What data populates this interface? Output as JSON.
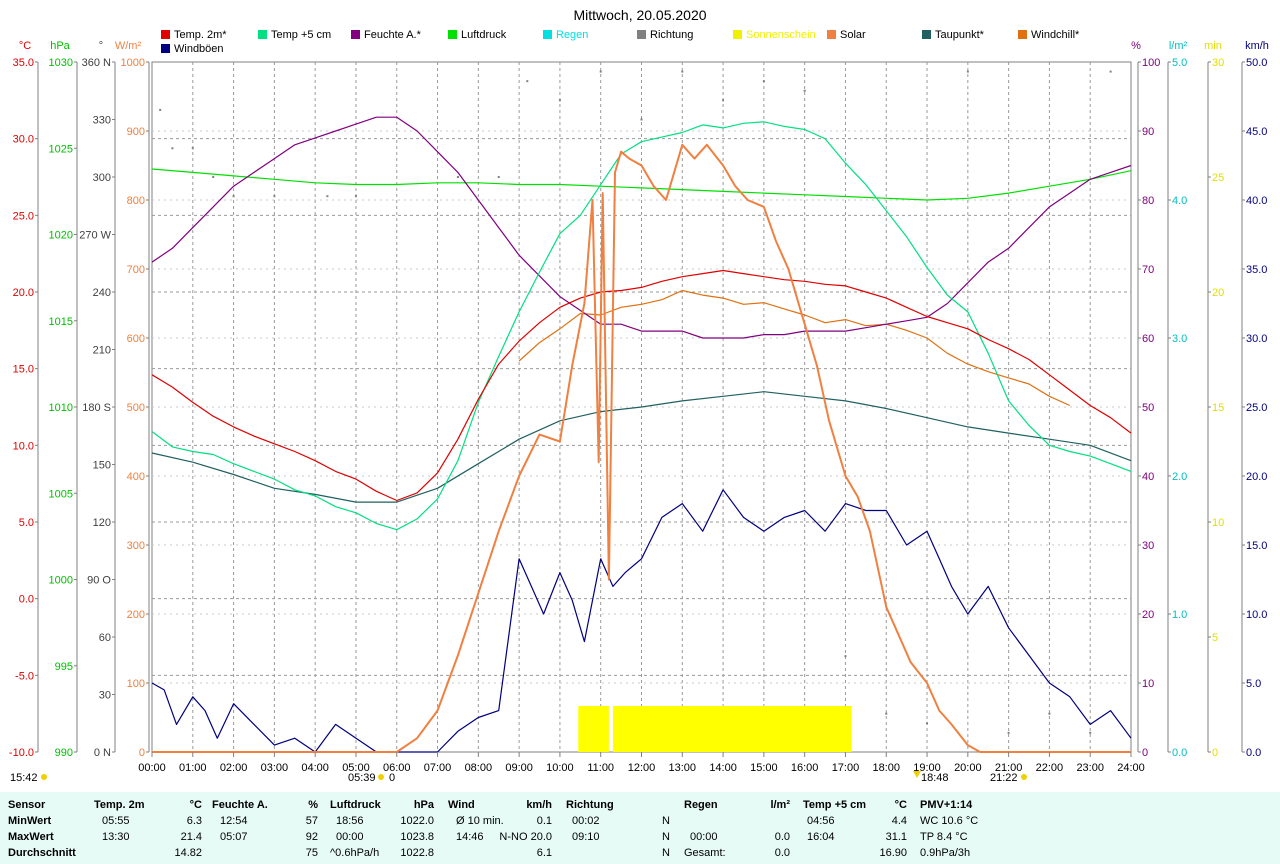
{
  "title": "Mittwoch, 20.05.2020",
  "legend": [
    {
      "label": "Temp. 2m*",
      "color": "#e00000"
    },
    {
      "label": "Temp +5 cm",
      "color": "#00e080"
    },
    {
      "label": "Feuchte A.*",
      "color": "#800080"
    },
    {
      "label": "Luftdruck",
      "color": "#00e000"
    },
    {
      "label": "Regen",
      "color": "#00e0e0"
    },
    {
      "label": "Richtung",
      "color": "#808080"
    },
    {
      "label": "Sonnenschein",
      "color": "#f0f000"
    },
    {
      "label": "Solar",
      "color": "#f08040"
    },
    {
      "label": "Taupunkt*",
      "color": "#206060"
    },
    {
      "label": "Windchill*",
      "color": "#e07010"
    },
    {
      "label": "Windböen",
      "color": "#000080"
    }
  ],
  "axes": {
    "temp": {
      "unit": "°C",
      "color": "#e00000",
      "ticks": [
        "35.0",
        "30.0",
        "25.0",
        "20.0",
        "15.0",
        "10.0",
        "5.0",
        "0.0",
        "-5.0",
        "-10.0"
      ]
    },
    "pressure": {
      "unit": "hPa",
      "color": "#00c000",
      "ticks": [
        "1030",
        "1025",
        "1020",
        "1015",
        "1010",
        "1005",
        "1000",
        "995",
        "990"
      ]
    },
    "direction": {
      "unit": "°",
      "color": "#404040",
      "ticks": [
        "360 N",
        "330",
        "300",
        "270 W",
        "240",
        "210",
        "180 S",
        "150",
        "120",
        "90  O",
        "60",
        "30",
        "0   N"
      ]
    },
    "solar": {
      "unit": "W/m²",
      "color": "#f08040",
      "ticks": [
        "1000",
        "900",
        "800",
        "700",
        "600",
        "500",
        "400",
        "300",
        "200",
        "100",
        "0"
      ]
    },
    "humidity": {
      "unit": "%",
      "color": "#800080",
      "ticks": [
        "100",
        "90",
        "80",
        "70",
        "60",
        "50",
        "40",
        "30",
        "20",
        "10",
        "0"
      ]
    },
    "rain": {
      "unit": "l/m²",
      "color": "#00c0c0",
      "ticks": [
        "5.0",
        "4.0",
        "3.0",
        "2.0",
        "1.0",
        "0.0"
      ]
    },
    "sunshine": {
      "unit": "min",
      "color": "#e0e000",
      "ticks": [
        "30",
        "25",
        "20",
        "15",
        "10",
        "5",
        "0"
      ]
    },
    "wind": {
      "unit": "km/h",
      "color": "#000080",
      "ticks": [
        "50.0",
        "45.0",
        "40.0",
        "35.0",
        "30.0",
        "25.0",
        "20.0",
        "15.0",
        "10.0",
        "5.0",
        "0.0"
      ]
    }
  },
  "x_ticks": [
    "00:00",
    "01:00",
    "02:00",
    "03:00",
    "04:00",
    "05:00",
    "06:00",
    "07:00",
    "08:00",
    "09:00",
    "10:00",
    "11:00",
    "12:00",
    "13:00",
    "14:00",
    "15:00",
    "16:00",
    "17:00",
    "18:00",
    "19:00",
    "20:00",
    "21:00",
    "22:00",
    "23:00",
    "24:00"
  ],
  "bottom_markers": {
    "left_time": "15:42",
    "sunrise": "05:39",
    "sunrise_val": "0",
    "sunset": "18:48",
    "moon": "21:22"
  },
  "chart_data": {
    "type": "line",
    "x_unit": "hours",
    "xlim": [
      0,
      24
    ],
    "series": [
      {
        "name": "Temp. 2m*",
        "axis": "temp",
        "x": [
          0,
          0.5,
          1,
          1.5,
          2,
          2.5,
          3,
          3.5,
          4,
          4.5,
          5,
          5.5,
          6,
          6.5,
          7,
          7.5,
          8,
          8.5,
          9,
          9.5,
          10,
          10.5,
          11,
          11.5,
          12,
          12.5,
          13,
          13.5,
          14,
          14.5,
          15,
          15.5,
          16,
          16.5,
          17,
          17.5,
          18,
          18.5,
          19,
          19.5,
          20,
          20.5,
          21,
          21.5,
          22,
          22.5,
          23,
          23.5,
          24
        ],
        "values": [
          14.6,
          13.8,
          12.8,
          11.9,
          11.2,
          10.6,
          10.1,
          9.6,
          9.0,
          8.3,
          7.8,
          7.0,
          6.4,
          6.9,
          8.2,
          10.4,
          13.0,
          15.3,
          16.8,
          18.0,
          19.0,
          19.6,
          20.0,
          20.1,
          20.3,
          20.7,
          21.0,
          21.2,
          21.4,
          21.2,
          21.0,
          20.8,
          20.7,
          20.5,
          20.4,
          20.0,
          19.6,
          19.0,
          18.4,
          18.0,
          17.6,
          16.9,
          16.3,
          15.6,
          14.6,
          13.6,
          12.6,
          11.8,
          10.8
        ]
      },
      {
        "name": "Temp +5 cm",
        "axis": "temp",
        "x": [
          0,
          0.5,
          1,
          1.5,
          2,
          2.5,
          3,
          3.5,
          4,
          4.5,
          5,
          5.5,
          6,
          6.5,
          7,
          7.5,
          8,
          8.5,
          9,
          9.5,
          10,
          10.5,
          11,
          11.5,
          12,
          12.5,
          13,
          13.5,
          14,
          14.5,
          15,
          15.5,
          16,
          16.5,
          17,
          17.5,
          18,
          18.5,
          19,
          19.5,
          20,
          20.5,
          21,
          21.5,
          22,
          22.5,
          23,
          23.5,
          24
        ],
        "values": [
          10.9,
          9.9,
          9.6,
          9.4,
          8.8,
          8.3,
          7.8,
          7.1,
          6.7,
          6.0,
          5.6,
          4.9,
          4.5,
          5.2,
          6.5,
          9.0,
          12.8,
          15.8,
          18.7,
          21.3,
          23.8,
          25.0,
          27.0,
          29.0,
          29.8,
          30.1,
          30.4,
          30.9,
          30.7,
          31.0,
          31.1,
          30.8,
          30.6,
          30.0,
          28.4,
          27.0,
          25.3,
          23.6,
          21.6,
          19.8,
          18.7,
          16.0,
          12.9,
          11.3,
          10.0,
          9.6,
          9.3,
          8.8,
          8.3
        ]
      },
      {
        "name": "Feuchte A.*",
        "axis": "humidity",
        "x": [
          0,
          0.5,
          1,
          1.5,
          2,
          2.5,
          3,
          3.5,
          4,
          4.5,
          5,
          5.5,
          6,
          6.5,
          7,
          7.5,
          8,
          8.5,
          9,
          9.5,
          10,
          10.5,
          11,
          11.5,
          12,
          12.5,
          13,
          13.5,
          14,
          14.5,
          15,
          15.5,
          16,
          16.5,
          17,
          17.5,
          18,
          18.5,
          19,
          19.5,
          20,
          20.5,
          21,
          21.5,
          22,
          22.5,
          23,
          23.5,
          24
        ],
        "values": [
          71,
          73,
          76,
          79,
          82,
          84,
          86,
          88,
          89,
          90,
          91,
          92,
          92,
          90,
          87,
          84,
          80,
          76,
          72,
          69,
          66,
          64,
          62,
          62,
          61,
          61,
          61,
          60,
          60,
          60,
          60.5,
          60.5,
          61,
          61,
          61,
          61.5,
          62,
          62.5,
          63,
          65,
          68,
          71,
          73,
          76,
          79,
          81,
          83,
          84,
          85
        ]
      },
      {
        "name": "Luftdruck",
        "axis": "pressure",
        "x": [
          0,
          1,
          2,
          3,
          4,
          5,
          6,
          7,
          8,
          9,
          10,
          11,
          12,
          13,
          14,
          15,
          16,
          17,
          18,
          19,
          20,
          21,
          22,
          23,
          24
        ],
        "values": [
          1023.8,
          1023.6,
          1023.4,
          1023.2,
          1023.0,
          1022.9,
          1022.9,
          1023.0,
          1023.0,
          1022.9,
          1022.9,
          1022.8,
          1022.7,
          1022.6,
          1022.5,
          1022.4,
          1022.3,
          1022.2,
          1022.1,
          1022.0,
          1022.1,
          1022.4,
          1022.8,
          1023.2,
          1023.7
        ]
      },
      {
        "name": "Taupunkt*",
        "axis": "temp",
        "x": [
          0,
          1,
          2,
          3,
          4,
          5,
          6,
          7,
          8,
          9,
          10,
          11,
          12,
          13,
          14,
          15,
          16,
          17,
          18,
          19,
          20,
          21,
          22,
          23,
          24
        ],
        "values": [
          9.5,
          8.9,
          8.1,
          7.2,
          6.8,
          6.3,
          6.3,
          7.2,
          8.8,
          10.4,
          11.6,
          12.2,
          12.5,
          12.9,
          13.2,
          13.5,
          13.2,
          12.9,
          12.4,
          11.8,
          11.2,
          10.8,
          10.4,
          10.0,
          9.0
        ]
      },
      {
        "name": "Windchill*",
        "axis": "temp",
        "x": [
          9,
          9.5,
          10,
          10.5,
          11,
          11.5,
          12,
          12.5,
          13,
          13.5,
          14,
          14.5,
          15,
          15.5,
          16,
          16.5,
          17,
          17.5,
          18,
          18.5,
          19,
          19.5,
          20,
          20.5,
          21,
          21.5,
          22,
          22.5,
          23,
          23.5,
          24
        ],
        "values": [
          15.5,
          16.7,
          17.6,
          18.6,
          18.5,
          19.0,
          19.2,
          19.5,
          20.1,
          19.8,
          19.6,
          19.2,
          19.3,
          18.9,
          18.5,
          18.0,
          18.2,
          17.8,
          17.9,
          17.5,
          17.0,
          16.0,
          15.3,
          14.8,
          14.4,
          14.0,
          13.2,
          12.6,
          null,
          null,
          null
        ]
      },
      {
        "name": "Solar",
        "axis": "solar",
        "x": [
          0,
          5.6,
          6.0,
          6.5,
          7,
          7.5,
          8,
          8.5,
          9,
          9.5,
          10,
          10.3,
          10.6,
          10.8,
          10.95,
          11.05,
          11.2,
          11.35,
          11.5,
          11.7,
          12,
          12.3,
          12.6,
          13,
          13.3,
          13.6,
          14,
          14.3,
          14.6,
          15,
          15.3,
          15.6,
          16,
          16.3,
          16.6,
          17,
          17.3,
          17.6,
          18,
          18.3,
          18.6,
          19,
          19.3,
          19.6,
          20,
          20.3,
          20.6,
          21,
          21.3,
          21.5,
          22,
          24
        ],
        "values": [
          0,
          0,
          0,
          20,
          60,
          140,
          230,
          320,
          400,
          460,
          450,
          560,
          650,
          800,
          420,
          810,
          250,
          840,
          870,
          860,
          850,
          820,
          800,
          880,
          860,
          880,
          850,
          820,
          800,
          790,
          740,
          700,
          620,
          560,
          480,
          400,
          370,
          320,
          210,
          170,
          130,
          100,
          60,
          40,
          10,
          0,
          0,
          0,
          0,
          0,
          0,
          0
        ]
      },
      {
        "name": "Windböen",
        "axis": "wind",
        "x": [
          0,
          0.3,
          0.6,
          1,
          1.3,
          1.6,
          2,
          2.5,
          3,
          3.5,
          4,
          4.5,
          5,
          5.5,
          6,
          6.5,
          7,
          7.5,
          8,
          8.5,
          9,
          9.3,
          9.6,
          10,
          10.3,
          10.6,
          11,
          11.3,
          11.6,
          12,
          12.5,
          13,
          13.5,
          14,
          14.5,
          15,
          15.5,
          16,
          16.5,
          17,
          17.5,
          18,
          18.5,
          19,
          19.3,
          19.6,
          20,
          20.5,
          21,
          21.5,
          22,
          22.5,
          23,
          23.5,
          24
        ],
        "values": [
          5.0,
          4.5,
          2.0,
          4.0,
          3.0,
          1.0,
          3.5,
          2.0,
          0.5,
          1.0,
          0.0,
          2.0,
          1.0,
          0,
          0,
          0,
          0,
          1.5,
          2.5,
          3.0,
          14.0,
          12.0,
          10.0,
          13.0,
          11.0,
          8.0,
          14.0,
          12.0,
          13.0,
          14.0,
          17.0,
          18.0,
          16.0,
          19.0,
          17.0,
          16.0,
          17.0,
          17.5,
          16.0,
          18.0,
          17.5,
          17.5,
          15.0,
          16.0,
          14.0,
          12.0,
          10.0,
          12.0,
          9.0,
          7.0,
          5.0,
          4.0,
          2.0,
          3.0,
          1.0
        ]
      },
      {
        "name": "Richtung",
        "axis": "direction",
        "x": [
          0.2,
          0.5,
          1,
          1.5,
          2,
          3,
          4.3,
          5,
          7.5,
          8.5,
          9.2,
          10,
          11,
          12,
          13,
          14,
          15,
          16,
          17,
          18,
          19,
          20,
          21,
          22,
          23,
          23.5
        ],
        "values": [
          335,
          315,
          315,
          300,
          290,
          290,
          290,
          290,
          300,
          300,
          350,
          340,
          355,
          330,
          355,
          340,
          350,
          345,
          50,
          20,
          15,
          355,
          10,
          20,
          10,
          355
        ]
      },
      {
        "name": "Sonnenschein",
        "axis": "sunshine",
        "x": [
          10.4,
          11.2,
          11.3,
          17.1
        ],
        "values": [
          2,
          2,
          2,
          2
        ]
      }
    ],
    "sunshine_intervals": [
      [
        10.45,
        11.2
      ],
      [
        11.3,
        17.15
      ]
    ]
  },
  "stats_table": {
    "labels": {
      "sensor": "Sensor",
      "min": "MinWert",
      "max": "MaxWert",
      "avg": "Durchschnitt"
    },
    "temp2m": {
      "header": "Temp. 2m",
      "unit": "°C",
      "min_time": "05:55",
      "min_val": "6.3",
      "max_time": "13:30",
      "max_val": "21.4",
      "avg": "14.82"
    },
    "humidity": {
      "header": "Feuchte A.",
      "unit": "%",
      "min_time": "12:54",
      "min_val": "57",
      "max_time": "05:07",
      "max_val": "92",
      "avg": "75"
    },
    "pressure": {
      "header": "Luftdruck",
      "unit": "hPa",
      "min_time": "18:56",
      "min_val": "1022.0",
      "max_time": "00:00",
      "max_val": "1023.8",
      "avg_label": "^0.6hPa/h",
      "avg": "1022.8"
    },
    "wind": {
      "header": "Wind",
      "unit": "km/h",
      "min_time": "Ø 10 min.",
      "min_val": "0.1",
      "max_time": "14:46",
      "max_val": "N-NO 20.0",
      "avg": "6.1"
    },
    "direction": {
      "header": "Richtung",
      "min_time": "00:02",
      "min_val": "N",
      "max_time": "09:10",
      "max_val": "N",
      "avg": "N"
    },
    "rain": {
      "header": "Regen",
      "unit": "l/m²",
      "max_time": "00:00",
      "max_val": "0.0",
      "avg_label": "Gesamt:",
      "avg": "0.0"
    },
    "temp5cm": {
      "header": "Temp +5 cm",
      "unit": "°C",
      "min_time": "04:56",
      "min_val": "4.4",
      "max_time": "16:04",
      "max_val": "31.1",
      "avg": "16.90"
    },
    "pmv": {
      "header": "PMV+1:14",
      "min": "WC 10.6 °C",
      "max": "TP 8.4 °C",
      "avg": "0.9hPa/3h"
    }
  }
}
